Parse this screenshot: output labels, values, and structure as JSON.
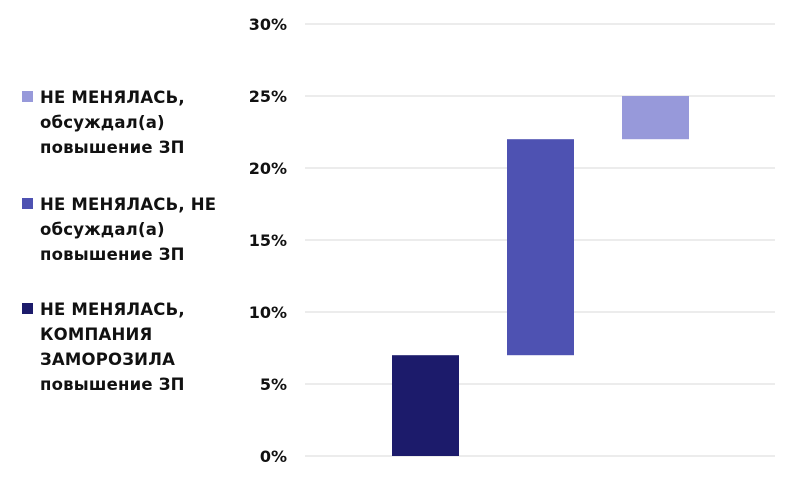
{
  "chart_data": {
    "type": "bar",
    "subtype": "waterfall",
    "title": "",
    "xlabel": "",
    "ylabel": "",
    "ylim": [
      0,
      30
    ],
    "y_ticks": [
      "0%",
      "5%",
      "10%",
      "15%",
      "20%",
      "25%",
      "30%"
    ],
    "grid": true,
    "legend_position": "left",
    "series": [
      {
        "name": "НЕ МЕНЯЛАСЬ, КОМПАНИЯ ЗАМОРОЗИЛА повышение ЗП",
        "color": "#1c1b6b",
        "start": 0,
        "end": 7
      },
      {
        "name": "НЕ МЕНЯЛАСЬ, НЕ обсуждал(а) повышение ЗП",
        "color": "#4e52b2",
        "start": 7,
        "end": 22
      },
      {
        "name": "НЕ МЕНЯЛАСЬ, обсуждал(а) повышение ЗП",
        "color": "#9799da",
        "start": 22,
        "end": 25
      }
    ]
  },
  "legend": [
    {
      "line1": "НЕ МЕНЯЛАСЬ,",
      "line2": "обсуждал(а)",
      "line3": "повышение ЗП",
      "line4": "",
      "color": "#9799da"
    },
    {
      "line1": "НЕ МЕНЯЛАСЬ, НЕ",
      "line2": "обсуждал(а)",
      "line3": "повышение ЗП",
      "line4": "",
      "color": "#4e52b2"
    },
    {
      "line1": "НЕ МЕНЯЛАСЬ,",
      "line2": "КОМПАНИЯ",
      "line3": "ЗАМОРОЗИЛА",
      "line4": "повышение ЗП",
      "color": "#1c1b6b"
    }
  ]
}
